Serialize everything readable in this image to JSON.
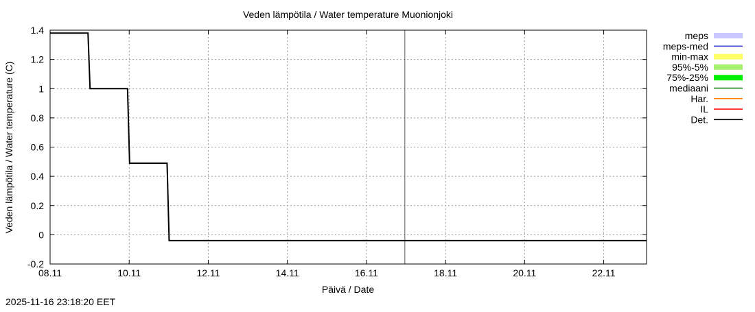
{
  "chart_data": {
    "type": "line",
    "title": "Veden lämpötila / Water temperature Muonionjoki",
    "xlabel": "Päivä / Date",
    "ylabel": "Veden lämpötila / Water temperature (C)",
    "xlim": [
      "2025-11-08T00:00",
      "2025-11-23T02:00"
    ],
    "ylim": [
      -0.2,
      1.4
    ],
    "x_ticks": [
      {
        "t": "2025-11-08T00:00",
        "label": "08.11"
      },
      {
        "t": "2025-11-10T00:00",
        "label": "10.11"
      },
      {
        "t": "2025-11-12T00:00",
        "label": "12.11"
      },
      {
        "t": "2025-11-14T00:00",
        "label": "14.11"
      },
      {
        "t": "2025-11-16T00:00",
        "label": "16.11"
      },
      {
        "t": "2025-11-18T00:00",
        "label": "18.11"
      },
      {
        "t": "2025-11-20T00:00",
        "label": "20.11"
      },
      {
        "t": "2025-11-22T00:00",
        "label": "22.11"
      }
    ],
    "y_ticks": [
      {
        "v": 1.4,
        "label": "1.4"
      },
      {
        "v": 1.2,
        "label": "1.2"
      },
      {
        "v": 1,
        "label": "1"
      },
      {
        "v": 0.8,
        "label": "0.8"
      },
      {
        "v": 0.6,
        "label": "0.6"
      },
      {
        "v": 0.4,
        "label": "0.4"
      },
      {
        "v": 0.2,
        "label": "0.2"
      },
      {
        "v": 0,
        "label": "0"
      },
      {
        "v": -0.2,
        "label": "-0.2"
      }
    ],
    "grid": true,
    "now_marker": "2025-11-16T23:18",
    "legend_position": "right",
    "legend": [
      {
        "name": "meps",
        "color": "#c8c8ff",
        "style": "band"
      },
      {
        "name": "meps-med",
        "color": "#4040e0",
        "style": "line"
      },
      {
        "name": "min-max",
        "color": "#ffff66",
        "style": "band"
      },
      {
        "name": "95%-5%",
        "color": "#a8f070",
        "style": "band"
      },
      {
        "name": "75%-25%",
        "color": "#00ee00",
        "style": "band"
      },
      {
        "name": "mediaani",
        "color": "#008000",
        "style": "line"
      },
      {
        "name": "Har.",
        "color": "#ff8000",
        "style": "line"
      },
      {
        "name": "IL",
        "color": "#ff0000",
        "style": "line"
      },
      {
        "name": "Det.",
        "color": "#000000",
        "style": "line"
      }
    ],
    "series": [
      {
        "name": "Det.",
        "color": "#000000",
        "points": [
          [
            "2025-11-08T00:00",
            1.38
          ],
          [
            "2025-11-08T23:00",
            1.38
          ],
          [
            "2025-11-09T00:15",
            1.0
          ],
          [
            "2025-11-09T23:00",
            1.0
          ],
          [
            "2025-11-10T00:15",
            0.49
          ],
          [
            "2025-11-10T23:00",
            0.49
          ],
          [
            "2025-11-11T00:15",
            -0.04
          ],
          [
            "2025-11-23T02:00",
            -0.04
          ]
        ]
      }
    ]
  },
  "footer": {
    "timestamp": "2025-11-16 23:18:20 EET"
  }
}
